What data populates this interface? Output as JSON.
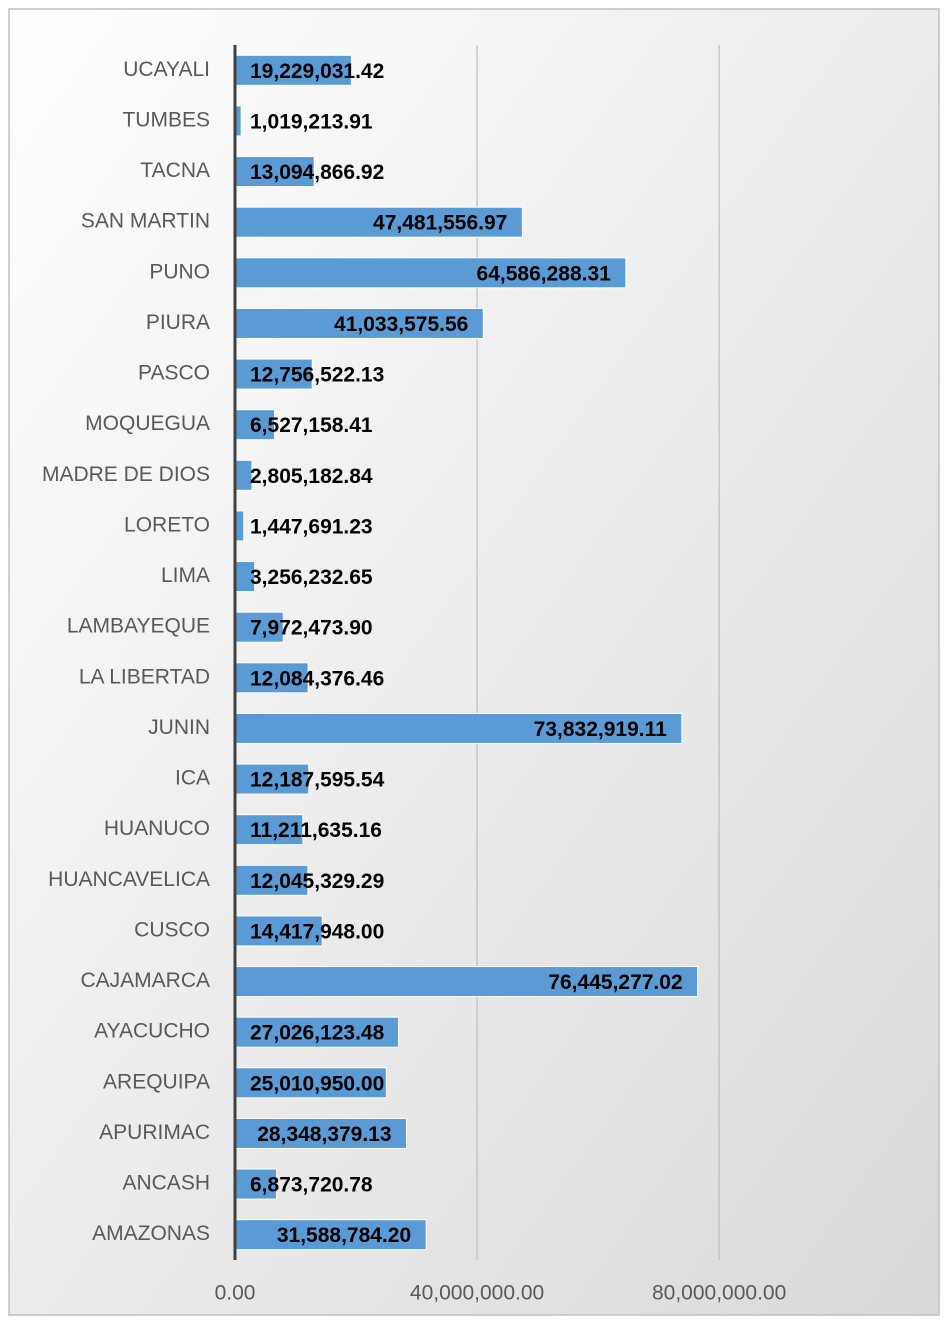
{
  "chart_data": {
    "type": "bar",
    "orientation": "horizontal",
    "categories": [
      "UCAYALI",
      "TUMBES",
      "TACNA",
      "SAN MARTIN",
      "PUNO",
      "PIURA",
      "PASCO",
      "MOQUEGUA",
      "MADRE DE DIOS",
      "LORETO",
      "LIMA",
      "LAMBAYEQUE",
      "LA LIBERTAD",
      "JUNIN",
      "ICA",
      "HUANUCO",
      "HUANCAVELICA",
      "CUSCO",
      "CAJAMARCA",
      "AYACUCHO",
      "AREQUIPA",
      "APURIMAC",
      "ANCASH",
      "AMAZONAS"
    ],
    "values": [
      19229031.42,
      1019213.91,
      13094866.92,
      47481556.97,
      64586288.31,
      41033575.56,
      12756522.13,
      6527158.41,
      2805182.84,
      1447691.23,
      3256232.65,
      7972473.9,
      12084376.46,
      73832919.11,
      12187595.54,
      11211635.16,
      12045329.29,
      14417948.0,
      76445277.02,
      27026123.48,
      25010950.0,
      28348379.13,
      6873720.78,
      31588784.2
    ],
    "value_labels": [
      "19,229,031.42",
      "1,019,213.91",
      "13,094,866.92",
      "47,481,556.97",
      "64,586,288.31",
      "41,033,575.56",
      "12,756,522.13",
      "6,527,158.41",
      "2,805,182.84",
      "1,447,691.23",
      "3,256,232.65",
      "7,972,473.90",
      "12,084,376.46",
      "73,832,919.11",
      "12,187,595.54",
      "11,211,635.16",
      "12,045,329.29",
      "14,417,948.00",
      "76,445,277.02",
      "27,026,123.48",
      "25,010,950.00",
      "28,348,379.13",
      "6,873,720.78",
      "31,588,784.20"
    ],
    "color": "#5b9bd5",
    "xlim": [
      0,
      116000000
    ],
    "xticks": [
      {
        "value": 0,
        "label": "0.00"
      },
      {
        "value": 40000000,
        "label": "40,000,000.00"
      },
      {
        "value": 80000000,
        "label": "80,000,000.00"
      }
    ],
    "grid": true
  }
}
